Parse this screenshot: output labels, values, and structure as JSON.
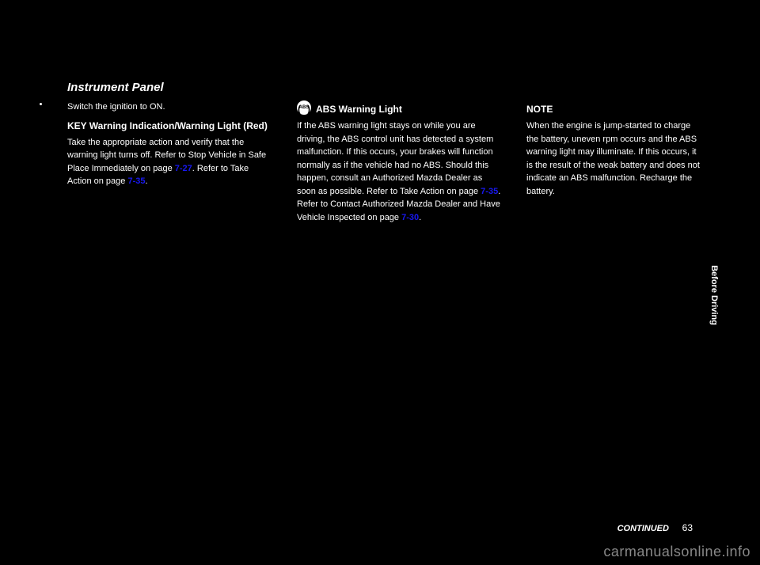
{
  "section_title": "Instrument Panel",
  "left_column": {
    "bullet_text": "Switch the ignition to ON.",
    "subsection": "KEY Warning Indication/Warning Light (Red)",
    "para1_before": "Take the appropriate action and verify that the warning light turns off.\nRefer to Stop Vehicle in Safe Place Immediately on page ",
    "page_ref1": "7-27",
    "para1_after": ".\nRefer to Take Action on page ",
    "page_ref2": "7-35",
    "para2_end": "."
  },
  "mid_column": {
    "icon_label": "ABS",
    "subsection": "ABS Warning Light",
    "para1_before": "If the ABS warning light stays on while you are driving, the ABS control unit has detected a system malfunction. If this occurs, your brakes will function normally as if the vehicle had no ABS.\nShould this happen, consult an Authorized Mazda Dealer as soon as possible.\nRefer to Take Action on page ",
    "page_ref1": "7-35",
    "para1_after": ".\nRefer to Contact Authorized Mazda Dealer and Have Vehicle Inspected on page ",
    "page_ref2": "7-30",
    "para2_end": "."
  },
  "right_column": {
    "note_title": "NOTE",
    "note_body": "When the engine is jump-started to charge the battery, uneven rpm occurs and the ABS warning light may illuminate. If this occurs, it is the result of the weak battery and does not indicate an ABS malfunction.\nRecharge the battery."
  },
  "side_label": "Before Driving",
  "footer": {
    "continued": "CONTINUED",
    "page_num": "63"
  },
  "watermark": "carmanualsonline.info"
}
